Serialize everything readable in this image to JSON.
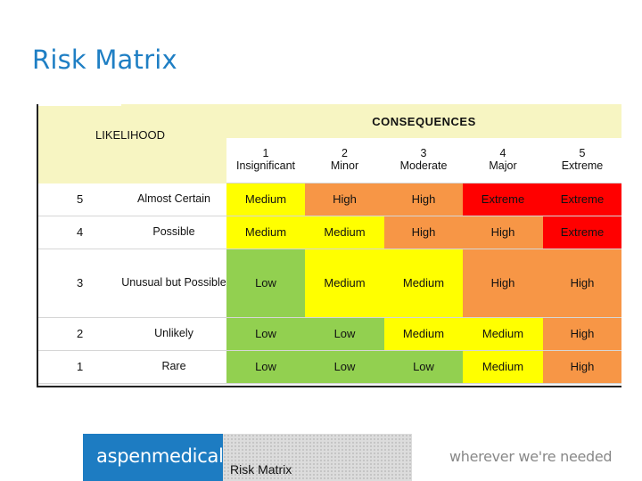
{
  "slide": {
    "title": "Risk Matrix"
  },
  "matrix": {
    "likelihood_label": "LIKELIHOOD",
    "consequences_label": "CONSEQUENCES",
    "consequence_headers": [
      {
        "num": "1",
        "name": "Insignificant"
      },
      {
        "num": "2",
        "name": "Minor"
      },
      {
        "num": "3",
        "name": "Moderate"
      },
      {
        "num": "4",
        "name": "Major"
      },
      {
        "num": "5",
        "name": "Extreme"
      }
    ],
    "rows": [
      {
        "num": "5",
        "likelihood": "Almost Certain",
        "ratings": [
          "Medium",
          "High",
          "High",
          "Extreme",
          "Extreme"
        ]
      },
      {
        "num": "4",
        "likelihood": "Possible",
        "ratings": [
          "Medium",
          "Medium",
          "High",
          "High",
          "Extreme"
        ]
      },
      {
        "num": "3",
        "likelihood": "Unusual but Possible",
        "ratings": [
          "Low",
          "Medium",
          "Medium",
          "High",
          "High"
        ]
      },
      {
        "num": "2",
        "likelihood": "Unlikely",
        "ratings": [
          "Low",
          "Low",
          "Medium",
          "Medium",
          "High"
        ]
      },
      {
        "num": "1",
        "likelihood": "Rare",
        "ratings": [
          "Low",
          "Low",
          "Low",
          "Medium",
          "High"
        ]
      }
    ],
    "rating_colors": {
      "Low": "#92d050",
      "Medium": "#ffff00",
      "High": "#f79646",
      "Extreme": "#ff0000"
    }
  },
  "footer": {
    "brand": "aspenmedical",
    "tagline": "wherever we're needed",
    "text": "Risk Matrix"
  }
}
